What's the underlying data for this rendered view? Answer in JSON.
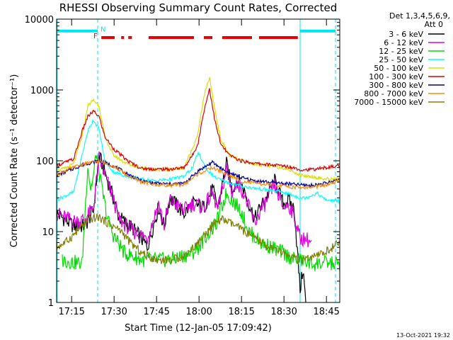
{
  "footer": {
    "date_stamp": "13-Oct-2021 19:32"
  },
  "chart_data": {
    "type": "line",
    "title": "RHESSI Observing Summary Count Rates, Corrected",
    "xlabel": "Start Time (12-Jan-05 17:09:42)",
    "ylabel": "Corrected Count Rate (s⁻¹ detector⁻¹)",
    "yscale": "log",
    "ylim": [
      1,
      10000
    ],
    "xlim_min": [
      0,
      100
    ],
    "x_ticks": [
      {
        "min": 5.3,
        "label": "17:15"
      },
      {
        "min": 20.3,
        "label": "17:30"
      },
      {
        "min": 35.3,
        "label": "17:45"
      },
      {
        "min": 50.3,
        "label": "18:00"
      },
      {
        "min": 65.3,
        "label": "18:15"
      },
      {
        "min": 80.3,
        "label": "18:30"
      },
      {
        "min": 95.3,
        "label": "18:45"
      }
    ],
    "y_ticks": [
      {
        "value": 1,
        "label": "1"
      },
      {
        "value": 10,
        "label": "10"
      },
      {
        "value": 100,
        "label": "100"
      },
      {
        "value": 1000,
        "label": "1000"
      },
      {
        "value": 10000,
        "label": "10000"
      }
    ],
    "legend": {
      "header": [
        "Det 1,3,4,5,6,9,",
        "Att 0"
      ],
      "placement": "right"
    },
    "grid": false,
    "markers": {
      "flag_F": "F",
      "flag_N": "N"
    },
    "dashed_verticals_min": [
      14.5,
      98.5
    ],
    "solid_verticals_min": [
      0.2,
      86.0
    ],
    "night_bars": [
      {
        "x": [
          0.2,
          14.5
        ],
        "y": 6800
      },
      {
        "x": [
          86.0,
          98.5
        ],
        "y": 6800
      }
    ],
    "flare_segments": [
      [
        15.8,
        20.5
      ],
      [
        22.8,
        23.8
      ],
      [
        25.3,
        26.6
      ],
      [
        32.5,
        48.5
      ],
      [
        52.0,
        55.0
      ],
      [
        58.5,
        69.0
      ],
      [
        71.5,
        85.2
      ]
    ],
    "flare_y": 5500,
    "series": [
      {
        "name": "3 - 6 keV",
        "color": "#000000",
        "x": [
          0,
          6,
          10,
          13,
          15,
          20,
          22,
          27,
          30,
          32,
          36,
          38,
          40,
          45,
          48,
          52,
          55,
          57,
          60,
          62,
          64,
          66,
          70,
          72,
          74,
          77,
          80,
          82,
          84,
          86,
          87,
          88
        ],
        "y": [
          18,
          12,
          12,
          20,
          120,
          30,
          16,
          11,
          8,
          6,
          22,
          12,
          30,
          18,
          25,
          22,
          40,
          22,
          90,
          40,
          55,
          40,
          15,
          22,
          30,
          52,
          25,
          28,
          20,
          1.5,
          3,
          1
        ]
      },
      {
        "name": "6 - 12 keV",
        "color": "#e000e0",
        "x": [
          0,
          6,
          10,
          13,
          15,
          20,
          22,
          27,
          30,
          32,
          36,
          38,
          40,
          45,
          48,
          52,
          55,
          57,
          60,
          62,
          64,
          66,
          70,
          72,
          74,
          77,
          80,
          82,
          84,
          86,
          88,
          90
        ],
        "y": [
          18,
          14,
          15,
          22,
          110,
          30,
          15,
          10,
          9,
          8,
          25,
          12,
          28,
          20,
          25,
          22,
          35,
          20,
          80,
          35,
          50,
          35,
          13,
          20,
          26,
          45,
          22,
          24,
          16,
          8,
          8,
          7
        ]
      },
      {
        "name": "12 - 25 keV",
        "color": "#00dd00",
        "x": [
          2,
          6,
          9,
          11,
          12,
          13,
          14,
          16,
          18,
          20,
          24,
          30,
          40,
          48,
          50,
          53,
          56,
          58,
          60,
          63,
          65,
          68,
          72,
          76,
          80,
          84,
          86,
          90,
          95,
          100
        ],
        "y": [
          4,
          3.7,
          3.5,
          90,
          40,
          60,
          130,
          40,
          15,
          9,
          5,
          4,
          4,
          5,
          6,
          9,
          12,
          20,
          35,
          25,
          20,
          10,
          7,
          6,
          5,
          4,
          4,
          3.5,
          3.6,
          3.5
        ]
      },
      {
        "name": "25 - 50 keV",
        "color": "#00ffff",
        "x": [
          0,
          3,
          6,
          9,
          11,
          13,
          15,
          17,
          20,
          25,
          30,
          35,
          40,
          45,
          48,
          50,
          53,
          56,
          60,
          64,
          68,
          72,
          76,
          80,
          84,
          86,
          88,
          92,
          95,
          100
        ],
        "y": [
          28,
          32,
          36,
          120,
          260,
          380,
          280,
          100,
          70,
          60,
          55,
          52,
          55,
          60,
          80,
          130,
          75,
          58,
          50,
          45,
          42,
          40,
          38,
          36,
          32,
          30,
          30,
          35,
          28,
          27
        ]
      },
      {
        "name": "50 - 100 keV",
        "color": "#dddd00",
        "x": [
          0,
          3,
          6,
          9,
          11,
          13,
          15,
          17,
          20,
          25,
          30,
          35,
          40,
          45,
          48,
          50,
          52,
          54,
          56,
          58,
          61,
          65,
          70,
          75,
          80,
          84,
          86,
          90,
          95,
          100
        ],
        "y": [
          72,
          78,
          90,
          220,
          600,
          720,
          600,
          220,
          120,
          90,
          80,
          75,
          75,
          80,
          150,
          250,
          800,
          1500,
          500,
          200,
          120,
          100,
          90,
          85,
          80,
          70,
          62,
          60,
          55,
          55
        ]
      },
      {
        "name": "100 - 300 keV",
        "color": "#dd0000",
        "x": [
          0,
          3,
          6,
          9,
          11,
          13,
          15,
          17,
          20,
          25,
          30,
          35,
          40,
          45,
          48,
          50,
          52,
          54,
          56,
          58,
          61,
          65,
          70,
          75,
          80,
          84,
          86,
          90,
          95,
          100
        ],
        "y": [
          85,
          95,
          105,
          260,
          420,
          500,
          420,
          220,
          150,
          100,
          78,
          76,
          76,
          80,
          120,
          180,
          500,
          1050,
          350,
          170,
          120,
          100,
          92,
          88,
          85,
          80,
          75,
          75,
          80,
          85
        ]
      },
      {
        "name": "300 - 800 keV",
        "color": "#000099",
        "x": [
          0,
          5,
          10,
          15,
          20,
          25,
          30,
          35,
          40,
          45,
          50,
          55,
          60,
          65,
          70,
          75,
          80,
          85,
          90,
          95,
          100
        ],
        "y": [
          62,
          75,
          90,
          100,
          85,
          65,
          52,
          48,
          47,
          48,
          72,
          95,
          70,
          58,
          52,
          50,
          48,
          46,
          45,
          48,
          55
        ]
      },
      {
        "name": "800 - 7000 keV",
        "color": "#ff8800",
        "x": [
          0,
          5,
          10,
          15,
          20,
          25,
          30,
          35,
          40,
          45,
          50,
          55,
          60,
          65,
          70,
          75,
          80,
          85,
          90,
          95,
          100
        ],
        "y": [
          64,
          78,
          92,
          98,
          85,
          62,
          50,
          46,
          45,
          46,
          65,
          80,
          65,
          52,
          48,
          46,
          44,
          42,
          42,
          45,
          52
        ]
      },
      {
        "name": "7000 - 15000 keV",
        "color": "#808000",
        "x": [
          0,
          3,
          6,
          9,
          12,
          15,
          17,
          20,
          23,
          26,
          30,
          35,
          40,
          45,
          50,
          55,
          58,
          60,
          65,
          70,
          75,
          80,
          85,
          88,
          92,
          96,
          100
        ],
        "y": [
          6,
          7,
          9,
          12,
          15,
          16,
          14,
          12,
          10,
          7,
          5,
          4,
          4,
          4.5,
          7,
          12,
          15,
          14,
          11,
          8,
          6,
          5,
          4,
          4,
          4.5,
          5.5,
          7
        ]
      }
    ]
  }
}
